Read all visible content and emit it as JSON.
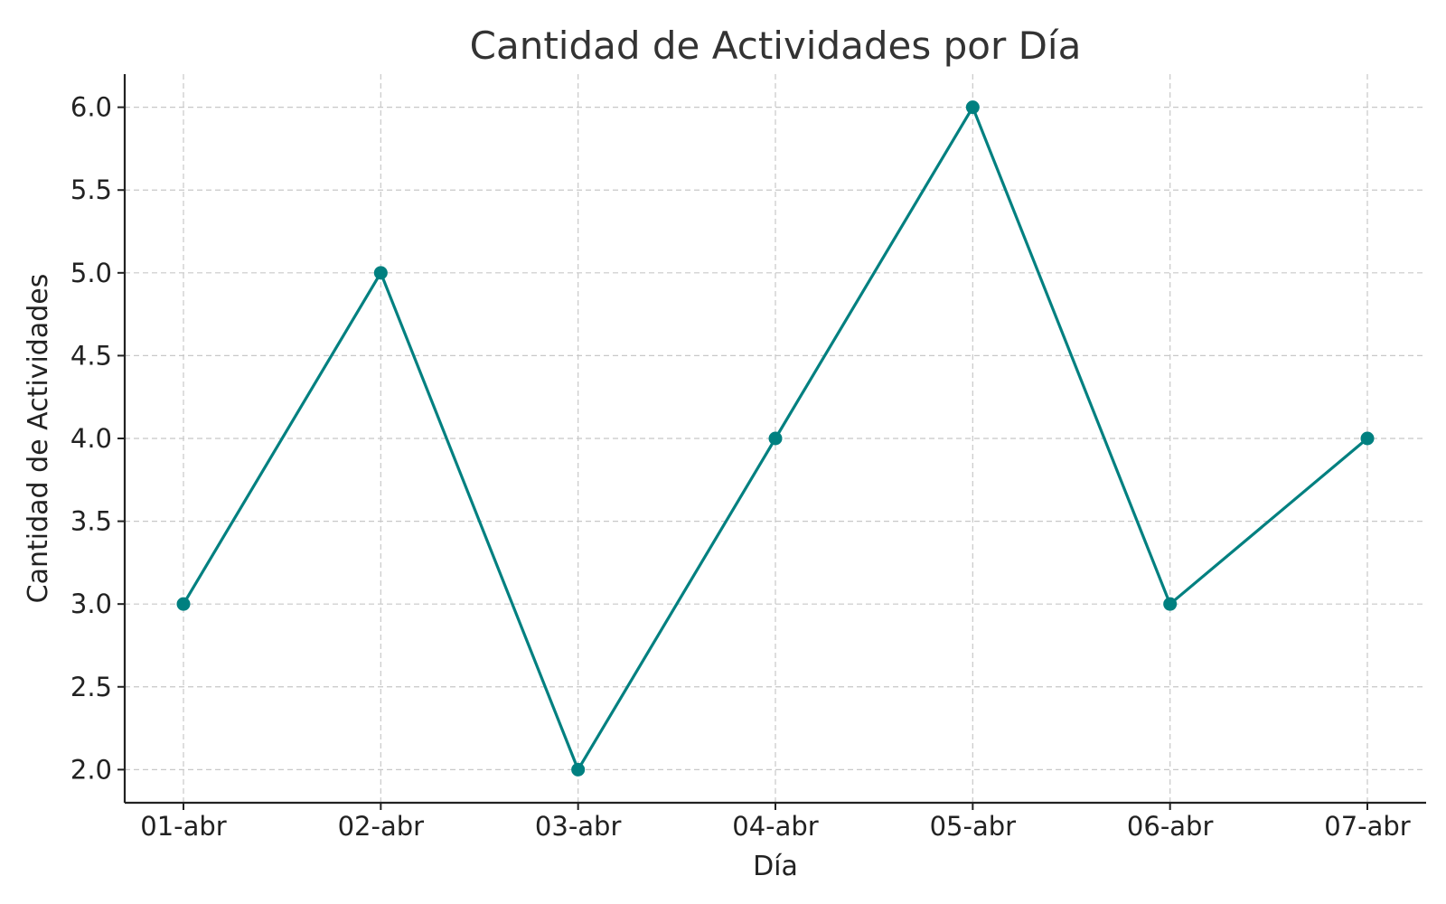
{
  "chart_data": {
    "type": "line",
    "title": "Cantidad de Actividades por Día",
    "xlabel": "Día",
    "ylabel": "Cantidad de Actividades",
    "categories": [
      "01-abr",
      "02-abr",
      "03-abr",
      "04-abr",
      "05-abr",
      "06-abr",
      "07-abr"
    ],
    "series": [
      {
        "values": [
          3,
          5,
          2,
          4,
          6,
          3,
          4
        ],
        "color": "#008080",
        "marker": "circle"
      }
    ],
    "ylim": [
      1.8,
      6.2
    ],
    "yticks": [
      2.0,
      2.5,
      3.0,
      3.5,
      4.0,
      4.5,
      5.0,
      5.5,
      6.0
    ],
    "ytick_labels": [
      "2.0",
      "2.5",
      "3.0",
      "3.5",
      "4.0",
      "4.5",
      "5.0",
      "5.5",
      "6.0"
    ],
    "grid": true,
    "legend": "none"
  }
}
